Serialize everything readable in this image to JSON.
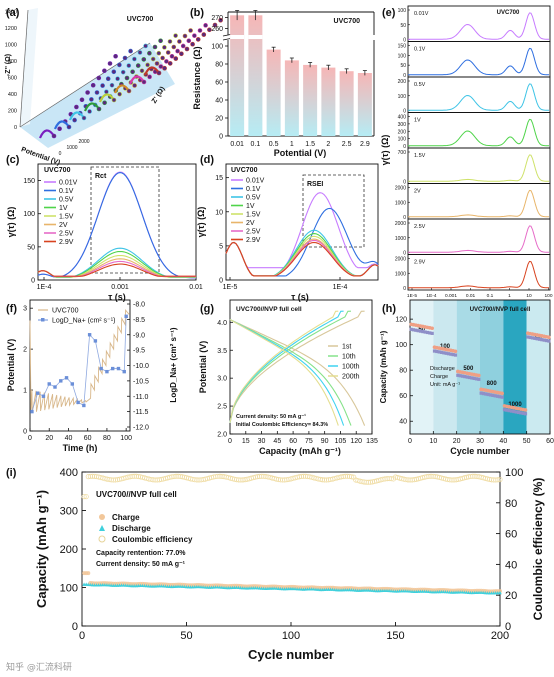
{
  "colors": {
    "v001": "#c77cff",
    "v01": "#2f6fe0",
    "v05": "#3fc4e6",
    "v1": "#4fd44a",
    "v15": "#cfe26a",
    "v2": "#e8b56a",
    "v25": "#e66cc8",
    "v29": "#d8431f",
    "c1": "#d8c79a",
    "c10": "#86e28a",
    "c100": "#3fd3f0",
    "c200": "#e4de90",
    "charge": "#f2c79a",
    "discharge": "#3fd0dc",
    "ce": "#f5e6b8"
  },
  "watermark": "知乎 @汇流科研",
  "chart_data": [
    {
      "panel": "(a)",
      "type": "scatter",
      "annotation": "UVC700",
      "xlabel": "Z' (Ω)",
      "ylabel": "-Z'' (Ω)",
      "zlabel": "Potential (V)",
      "yticks": [
        0,
        200,
        400,
        600,
        800,
        1000,
        1200,
        1400
      ],
      "xticks": [
        0,
        1000,
        2000
      ],
      "potentials": [
        "0.01",
        "0.1",
        "0.5",
        "1",
        "1.5",
        "2",
        "2.5",
        "2.9"
      ],
      "colors": [
        "#7a1fbf",
        "#2f6fe0",
        "#3fc4e6",
        "#2e9b3a",
        "#b9cf3a",
        "#d08a2a",
        "#d83aa8",
        "#c0392b"
      ]
    },
    {
      "panel": "(b)",
      "type": "bar",
      "annotation": "UVC700",
      "xlabel": "Potential (V)",
      "ylabel": "Resistance (Ω)",
      "categories": [
        "0.01",
        "0.1",
        "0.5",
        "1",
        "1.5",
        "2",
        "2.5",
        "2.9"
      ],
      "values": [
        272,
        272,
        96,
        84,
        79,
        76,
        72,
        70
      ],
      "errors": [
        4,
        4,
        2,
        2,
        2,
        2,
        2,
        2
      ],
      "yticks_low": [
        0,
        20,
        40,
        60,
        80,
        100
      ],
      "yticks_high": [
        260,
        270
      ],
      "axis_break": [
        110,
        255
      ]
    },
    {
      "panel": "(c)",
      "type": "line",
      "annotation": "UVC700",
      "xlabel": "τ (s)",
      "ylabel": "γ(τ) (Ω)",
      "xticks": [
        "1E-4",
        "0.001",
        "0.01"
      ],
      "yticks": [
        0,
        50,
        100,
        150
      ],
      "ylim": [
        0,
        175
      ],
      "box_label": "Rct",
      "series": [
        {
          "name": "0.01V",
          "peak": 163
        },
        {
          "name": "0.1V",
          "peak": 162
        },
        {
          "name": "0.5V",
          "peak": 48
        },
        {
          "name": "1V",
          "peak": 43
        },
        {
          "name": "1.5V",
          "peak": 37
        },
        {
          "name": "2V",
          "peak": 32
        },
        {
          "name": "2.5V",
          "peak": 28
        },
        {
          "name": "2.9V",
          "peak": 24
        }
      ]
    },
    {
      "panel": "(d)",
      "type": "line",
      "annotation": "UVC700",
      "xlabel": "τ (s)",
      "ylabel": "γ(τ) (Ω)",
      "xticks": [
        "1E-5",
        "1E-4"
      ],
      "yticks": [
        0,
        5,
        10,
        15
      ],
      "ylim": [
        0,
        17
      ],
      "box_label": "RSEI",
      "series": [
        {
          "name": "0.01V",
          "peak": 12.8
        },
        {
          "name": "0.1V",
          "peak": 10.5
        },
        {
          "name": "0.5V",
          "peak": 7.3
        },
        {
          "name": "1V",
          "peak": 6.8
        },
        {
          "name": "1.5V",
          "peak": 6.4
        },
        {
          "name": "2V",
          "peak": 6.0
        },
        {
          "name": "2.5V",
          "peak": 5.8
        },
        {
          "name": "2.9V",
          "peak": 5.5
        }
      ]
    },
    {
      "panel": "(e)",
      "type": "line",
      "annotation": "UVC700",
      "xlabel": "τ (s)",
      "ylabel": "γ(τ) (Ω)",
      "xticks": [
        "1E-5",
        "1E-4",
        "0.001",
        "0.01",
        "0.1",
        "1",
        "10",
        "100"
      ],
      "series": [
        {
          "name": "0.01V",
          "ymax": 100,
          "yticks": [
            "0",
            "50",
            "100"
          ]
        },
        {
          "name": "0.1V",
          "ymax": 150,
          "yticks": [
            "0",
            "50",
            "100",
            "150"
          ]
        },
        {
          "name": "0.5V",
          "ymax": 200,
          "yticks": [
            "0",
            "100",
            "200"
          ]
        },
        {
          "name": "1V",
          "ymax": 400,
          "yticks": [
            "0",
            "100",
            "200",
            "300",
            "400"
          ]
        },
        {
          "name": "1.5V",
          "ymax": 700,
          "yticks": [
            "0",
            "700"
          ]
        },
        {
          "name": "2V",
          "ymax": 2000,
          "yticks": [
            "0",
            "1000",
            "2000"
          ]
        },
        {
          "name": "2.5V",
          "ymax": 2000,
          "yticks": [
            "0",
            "1000",
            "2000"
          ]
        },
        {
          "name": "2.9V",
          "ymax": 2000,
          "yticks": [
            "0",
            "1000",
            "2000"
          ]
        }
      ]
    },
    {
      "panel": "(f)",
      "type": "line",
      "xlabel": "Time (h)",
      "ylabel": "Potential (V)",
      "y2label": "LogD_Na+ (cm² s⁻¹)",
      "xticks": [
        0,
        20,
        40,
        60,
        80,
        100
      ],
      "yticks": [
        0,
        1,
        2,
        3
      ],
      "y2ticks": [
        "-8.0",
        "-8.5",
        "-9.0",
        "-9.5",
        "-10.0",
        "-10.5",
        "-11.0",
        "-11.5",
        "-12.0"
      ],
      "series": [
        {
          "name": "UVC700"
        },
        {
          "name": "LogD_Na+ (cm² s⁻¹)"
        }
      ],
      "logD_x": [
        2,
        8,
        14,
        20,
        26,
        32,
        38,
        44,
        50,
        56,
        62,
        68,
        74,
        80,
        86,
        92,
        98,
        100
      ],
      "logD_y": [
        -11.5,
        -10.9,
        -11.0,
        -10.6,
        -10.7,
        -10.5,
        -10.4,
        -10.6,
        -11.2,
        -11.3,
        -9.0,
        -9.2,
        -10.1,
        -10.2,
        -10.1,
        -10.1,
        -10.2,
        -8.4
      ]
    },
    {
      "panel": "(g)",
      "type": "line",
      "xlabel": "Capacity (mAh g⁻¹)",
      "ylabel": "Potential (V)",
      "xticks": [
        0,
        15,
        30,
        45,
        60,
        75,
        90,
        105,
        120,
        135
      ],
      "yticks": [
        2.0,
        2.5,
        3.0,
        3.5,
        4.0
      ],
      "ylim": [
        2.0,
        4.4
      ],
      "annotation": "UVC700//NVP full cell",
      "notes": [
        "Current density: 50 mA g⁻¹",
        "Initial Coulombic Efficiency= 84.3%"
      ],
      "series": [
        {
          "name": "1st",
          "capacity": 128
        },
        {
          "name": "10th",
          "capacity": 115
        },
        {
          "name": "100th",
          "capacity": 108
        },
        {
          "name": "200th",
          "capacity": 103
        }
      ]
    },
    {
      "panel": "(h)",
      "type": "scatter",
      "xlabel": "Cycle number",
      "ylabel": "Capacity (mAh g⁻¹)",
      "xticks": [
        0,
        10,
        20,
        30,
        40,
        50,
        60
      ],
      "yticks": [
        40,
        60,
        80,
        100,
        120
      ],
      "ylim": [
        30,
        135
      ],
      "annotation": "UVC700//NVP full cell",
      "legend": [
        "Discharge",
        "Charge",
        "Unit: mA g⁻¹"
      ],
      "rates": [
        {
          "label": "50",
          "from": 1,
          "to": 10,
          "charge": 116,
          "discharge": 112
        },
        {
          "label": "100",
          "from": 11,
          "to": 20,
          "charge": 98,
          "discharge": 95
        },
        {
          "label": "500",
          "from": 21,
          "to": 30,
          "charge": 79,
          "discharge": 76
        },
        {
          "label": "800",
          "from": 31,
          "to": 40,
          "charge": 65,
          "discharge": 62
        },
        {
          "label": "1000",
          "from": 41,
          "to": 50,
          "charge": 52,
          "discharge": 49
        },
        {
          "label": "50",
          "from": 51,
          "to": 60,
          "charge": 109,
          "discharge": 106
        }
      ]
    },
    {
      "panel": "(i)",
      "type": "scatter",
      "xlabel": "Cycle number",
      "ylabel": "Capacity (mAh g⁻¹)",
      "y2label": "Coulombic efficiency (%)",
      "xticks": [
        0,
        50,
        100,
        150,
        200
      ],
      "yticks": [
        0,
        100,
        200,
        300,
        400
      ],
      "y2ticks": [
        0,
        20,
        40,
        60,
        80,
        100
      ],
      "title": "UVC700//NVP full cell",
      "notes": [
        "Capacity rentention: 77.0%",
        "Current density: 50 mA g⁻¹"
      ],
      "series": [
        {
          "name": "Charge",
          "start": 112,
          "end": 90
        },
        {
          "name": "Discharge",
          "start": 108,
          "end": 86
        },
        {
          "name": "Coulombic efficiency",
          "start": 85,
          "end": 98
        }
      ]
    }
  ]
}
